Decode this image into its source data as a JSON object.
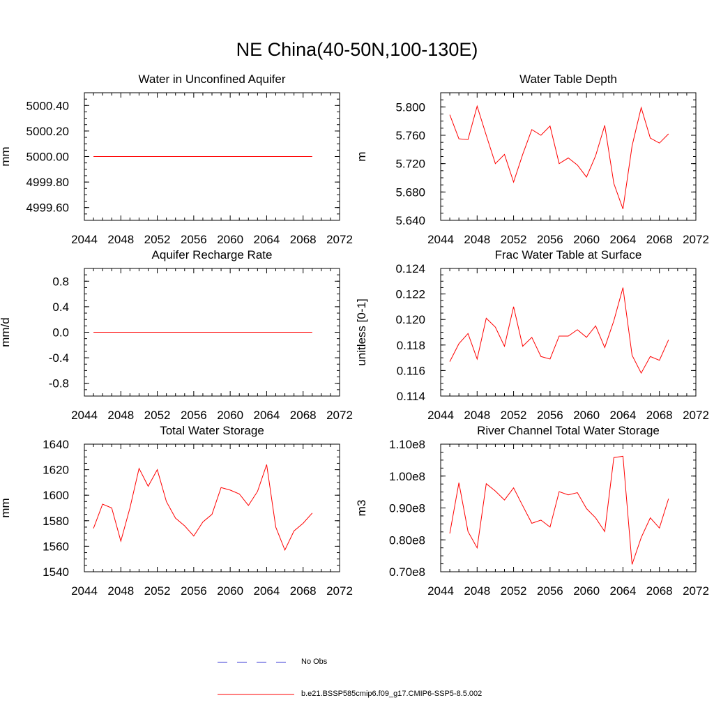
{
  "title": "NE China(40-50N,100-130E)",
  "colors": {
    "model": "#ff0000",
    "obs": "#3a3ad6",
    "axis": "#000000"
  },
  "legend": {
    "obs_label": "No Obs",
    "model_label": "b.e21.BSSP585cmip6.f09_g17.CMIP6-SSP5-8.5.002"
  },
  "chart_data": [
    {
      "type": "line",
      "title": "Water in Unconfined Aquifer",
      "ylabel": "mm",
      "xlim": [
        2044,
        2072
      ],
      "ylim": [
        4999.5,
        5000.5
      ],
      "xticks": [
        2044,
        2048,
        2052,
        2056,
        2060,
        2064,
        2068,
        2072
      ],
      "yticks": [
        4999.6,
        4999.8,
        5000.0,
        5000.2,
        5000.4
      ],
      "ytick_labels": [
        "4999.60",
        "4999.80",
        "5000.00",
        "5000.20",
        "5000.40"
      ],
      "x": [
        2045,
        2046,
        2047,
        2048,
        2049,
        2050,
        2051,
        2052,
        2053,
        2054,
        2055,
        2056,
        2057,
        2058,
        2059,
        2060,
        2061,
        2062,
        2063,
        2064,
        2065,
        2066,
        2067,
        2068,
        2069
      ],
      "values": [
        5000,
        5000,
        5000,
        5000,
        5000,
        5000,
        5000,
        5000,
        5000,
        5000,
        5000,
        5000,
        5000,
        5000,
        5000,
        5000,
        5000,
        5000,
        5000,
        5000,
        5000,
        5000,
        5000,
        5000,
        5000
      ]
    },
    {
      "type": "line",
      "title": "Water Table Depth",
      "ylabel": "m",
      "xlim": [
        2044,
        2072
      ],
      "ylim": [
        5.64,
        5.82
      ],
      "xticks": [
        2044,
        2048,
        2052,
        2056,
        2060,
        2064,
        2068,
        2072
      ],
      "yticks": [
        5.64,
        5.68,
        5.72,
        5.76,
        5.8
      ],
      "ytick_labels": [
        "5.640",
        "5.680",
        "5.720",
        "5.760",
        "5.800"
      ],
      "x": [
        2045,
        2046,
        2047,
        2048,
        2049,
        2050,
        2051,
        2052,
        2053,
        2054,
        2055,
        2056,
        2057,
        2058,
        2059,
        2060,
        2061,
        2062,
        2063,
        2064,
        2065,
        2066,
        2067,
        2068,
        2069
      ],
      "values": [
        5.789,
        5.755,
        5.754,
        5.801,
        5.76,
        5.72,
        5.733,
        5.694,
        5.733,
        5.768,
        5.76,
        5.773,
        5.72,
        5.728,
        5.718,
        5.701,
        5.731,
        5.774,
        5.692,
        5.656,
        5.745,
        5.799,
        5.756,
        5.749,
        5.762
      ]
    },
    {
      "type": "line",
      "title": "Aquifer Recharge Rate",
      "ylabel": "mm/d",
      "xlim": [
        2044,
        2072
      ],
      "ylim": [
        -1.0,
        1.0
      ],
      "xticks": [
        2044,
        2048,
        2052,
        2056,
        2060,
        2064,
        2068,
        2072
      ],
      "yticks": [
        -0.8,
        -0.4,
        0.0,
        0.4,
        0.8
      ],
      "ytick_labels": [
        "-0.8",
        "-0.4",
        "0.0",
        "0.4",
        "0.8"
      ],
      "x": [
        2045,
        2046,
        2047,
        2048,
        2049,
        2050,
        2051,
        2052,
        2053,
        2054,
        2055,
        2056,
        2057,
        2058,
        2059,
        2060,
        2061,
        2062,
        2063,
        2064,
        2065,
        2066,
        2067,
        2068,
        2069
      ],
      "values": [
        0,
        0,
        0,
        0,
        0,
        0,
        0,
        0,
        0,
        0,
        0,
        0,
        0,
        0,
        0,
        0,
        0,
        0,
        0,
        0,
        0,
        0,
        0,
        0,
        0
      ]
    },
    {
      "type": "line",
      "title": "Frac Water Table at Surface",
      "ylabel": "unitless [0-1]",
      "xlim": [
        2044,
        2072
      ],
      "ylim": [
        0.114,
        0.124
      ],
      "xticks": [
        2044,
        2048,
        2052,
        2056,
        2060,
        2064,
        2068,
        2072
      ],
      "yticks": [
        0.114,
        0.116,
        0.118,
        0.12,
        0.122,
        0.124
      ],
      "ytick_labels": [
        "0.114",
        "0.116",
        "0.118",
        "0.120",
        "0.122",
        "0.124"
      ],
      "x": [
        2045,
        2046,
        2047,
        2048,
        2049,
        2050,
        2051,
        2052,
        2053,
        2054,
        2055,
        2056,
        2057,
        2058,
        2059,
        2060,
        2061,
        2062,
        2063,
        2064,
        2065,
        2066,
        2067,
        2068,
        2069
      ],
      "values": [
        0.1167,
        0.1181,
        0.1189,
        0.1169,
        0.1201,
        0.1194,
        0.1179,
        0.121,
        0.1179,
        0.1186,
        0.1171,
        0.1169,
        0.1187,
        0.1187,
        0.1192,
        0.1186,
        0.1195,
        0.1178,
        0.1199,
        0.1225,
        0.1172,
        0.1158,
        0.1171,
        0.1168,
        0.1184
      ]
    },
    {
      "type": "line",
      "title": "Total Water Storage",
      "ylabel": "mm",
      "xlim": [
        2044,
        2072
      ],
      "ylim": [
        1540,
        1640
      ],
      "xticks": [
        2044,
        2048,
        2052,
        2056,
        2060,
        2064,
        2068,
        2072
      ],
      "yticks": [
        1540,
        1560,
        1580,
        1600,
        1620,
        1640
      ],
      "ytick_labels": [
        "1540",
        "1560",
        "1580",
        "1600",
        "1620",
        "1640"
      ],
      "x": [
        2045,
        2046,
        2047,
        2048,
        2049,
        2050,
        2051,
        2052,
        2053,
        2054,
        2055,
        2056,
        2057,
        2058,
        2059,
        2060,
        2061,
        2062,
        2063,
        2064,
        2065,
        2066,
        2067,
        2068,
        2069
      ],
      "values": [
        1574,
        1593,
        1590,
        1564,
        1590,
        1621,
        1607,
        1620,
        1595,
        1582,
        1576,
        1568,
        1579,
        1585,
        1606,
        1604,
        1601,
        1592,
        1603,
        1624,
        1575,
        1557,
        1572,
        1578,
        1586
      ]
    },
    {
      "type": "line",
      "title": "River Channel Total Water Storage",
      "ylabel": "m3",
      "xlim": [
        2044,
        2072
      ],
      "ylim": [
        70000000,
        110000000
      ],
      "xticks": [
        2044,
        2048,
        2052,
        2056,
        2060,
        2064,
        2068,
        2072
      ],
      "yticks": [
        70000000,
        80000000,
        90000000,
        100000000,
        110000000
      ],
      "ytick_labels": [
        "0.70e8",
        "0.80e8",
        "0.90e8",
        "1.00e8",
        "1.10e8"
      ],
      "x": [
        2045,
        2046,
        2047,
        2048,
        2049,
        2050,
        2051,
        2052,
        2053,
        2054,
        2055,
        2056,
        2057,
        2058,
        2059,
        2060,
        2061,
        2062,
        2063,
        2064,
        2065,
        2066,
        2067,
        2068,
        2069
      ],
      "values": [
        82000000,
        97900000,
        82600000,
        77500000,
        97600000,
        95300000,
        92500000,
        96300000,
        90700000,
        85200000,
        86200000,
        84000000,
        95100000,
        94100000,
        94800000,
        89800000,
        86900000,
        82600000,
        105800000,
        106200000,
        72300000,
        80700000,
        86900000,
        83700000,
        92900000
      ]
    }
  ]
}
